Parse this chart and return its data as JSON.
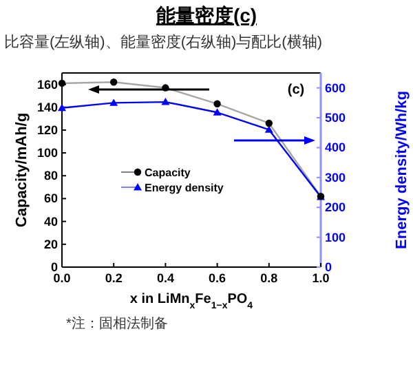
{
  "chart_data": {
    "type": "line",
    "title": "能量密度(c)",
    "subtitle": "比容量(左纵轴)、能量密度(右纵轴)与配比(横轴)",
    "xlabel": "x in LiMn$_{x}$Fe$_{1−x}$PO$_{4}$",
    "ylabel": "Capacity/mAh/g",
    "y2label": "Energy density/Wh/kg",
    "annotations": [
      "(c)",
      "*注：固相法制备"
    ],
    "x": [
      0,
      0.2,
      0.4,
      0.6,
      0.8,
      1.0
    ],
    "series": [
      {
        "name": "Capacity",
        "color": "#000000",
        "marker": "circle",
        "values": [
          161,
          162,
          157,
          143,
          126,
          62
        ]
      },
      {
        "name": "Energy density",
        "color": "#0000ff",
        "marker": "triangle",
        "axis": "y2",
        "values": [
          533,
          550,
          553,
          518,
          460,
          235
        ]
      }
    ],
    "xlim": [
      0,
      1
    ],
    "xticks": [
      {
        "value": 0,
        "label": "0.0"
      },
      0.2,
      0.4,
      0.6,
      0.8,
      {
        "value": 1,
        "label": "1.0"
      }
    ],
    "ylim": [
      0,
      170
    ],
    "yticks": [
      0,
      20,
      40,
      60,
      80,
      100,
      120,
      140,
      160
    ],
    "y2lim": [
      0,
      650
    ],
    "y2ticks": [
      0,
      100,
      200,
      300,
      400,
      500,
      600
    ],
    "legend": "center",
    "grid": false
  }
}
